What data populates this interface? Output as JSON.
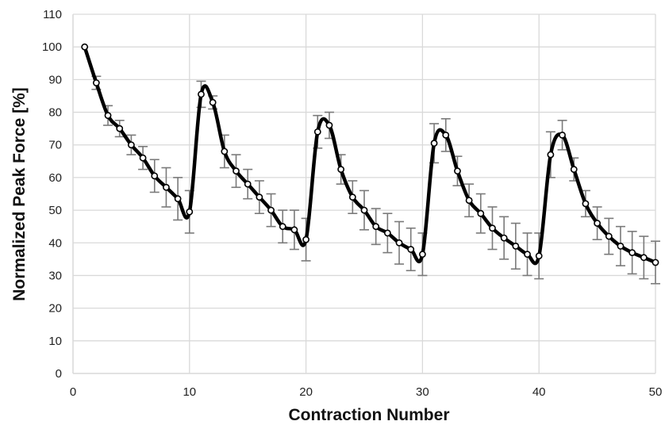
{
  "chart_data": {
    "type": "line",
    "title": "",
    "xlabel": "Contraction Number",
    "ylabel": "Normalized Peak Force [%]",
    "xlim": [
      0,
      50
    ],
    "ylim": [
      0,
      110
    ],
    "x_ticks": [
      0,
      10,
      20,
      30,
      40,
      50
    ],
    "y_ticks": [
      0,
      10,
      20,
      30,
      40,
      50,
      60,
      70,
      80,
      90,
      100,
      110
    ],
    "grid": true,
    "legend": "none",
    "colors": {
      "line": "#000000",
      "marker_fill": "#ffffff",
      "error_bar": "#7a7a7a",
      "grid": "#d9d9d9"
    },
    "series": [
      {
        "x": [
          1,
          2,
          3,
          4,
          5,
          6,
          7,
          8,
          9,
          10,
          11,
          12,
          13,
          14,
          15,
          16,
          17,
          18,
          19,
          20,
          21,
          22,
          23,
          24,
          25,
          26,
          27,
          28,
          29,
          30,
          31,
          32,
          33,
          34,
          35,
          36,
          37,
          38,
          39,
          40,
          41,
          42,
          43,
          44,
          45,
          46,
          47,
          48,
          49,
          50
        ],
        "y": [
          100,
          89,
          79,
          75,
          70,
          66,
          60.5,
          57,
          53.5,
          49.5,
          85.5,
          83,
          68,
          62,
          58,
          54,
          50,
          45,
          44,
          41,
          74,
          76,
          62.5,
          54,
          50,
          45,
          43,
          40,
          38,
          36.5,
          70.5,
          73,
          62,
          53,
          49,
          44.5,
          41.5,
          39,
          36.5,
          36,
          67,
          73,
          62.5,
          52,
          46,
          42,
          39,
          37,
          35.5,
          34
        ],
        "err": [
          0,
          2,
          3,
          2.5,
          3,
          3.5,
          5,
          6,
          6.5,
          6.5,
          4,
          2,
          5,
          5,
          4.5,
          5,
          5,
          5,
          6,
          6.5,
          5,
          4,
          4.5,
          5,
          6,
          5.5,
          6,
          6.5,
          6.5,
          6.5,
          6,
          5,
          4.5,
          5,
          6,
          6.5,
          6.5,
          7,
          6.5,
          7,
          7,
          4.5,
          3.5,
          4,
          5,
          5.5,
          6,
          6.5,
          6.5,
          6.5
        ]
      }
    ]
  }
}
